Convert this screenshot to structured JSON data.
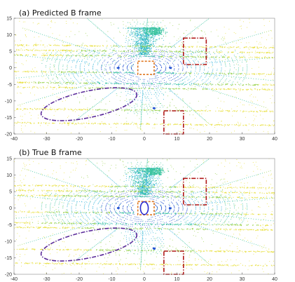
{
  "chart_data": [
    {
      "type": "scatter",
      "title": "(a) Predicted B frame",
      "xlim": [
        -40,
        40
      ],
      "ylim": [
        -20,
        15
      ],
      "x_ticks": [
        -40,
        -30,
        -20,
        -10,
        0,
        10,
        20,
        30,
        40
      ],
      "y_ticks": [
        15,
        10,
        5,
        0,
        -5,
        -10,
        -15,
        -20
      ],
      "colormap": [
        "#1f4fd0",
        "#2ab0d8",
        "#3cc4a0",
        "#9fd456",
        "#e8e040"
      ],
      "annotations": [
        {
          "shape": "rectangle",
          "style": "dash-dot",
          "color": "#b01818",
          "x": [
            12,
            19
          ],
          "y": [
            1,
            9
          ]
        },
        {
          "shape": "rectangle",
          "style": "dash-dot",
          "color": "#b01818",
          "x": [
            6,
            12
          ],
          "y": [
            -20,
            -13
          ]
        },
        {
          "shape": "rectangle",
          "style": "dashed",
          "color": "#e07820",
          "x": [
            -2,
            3
          ],
          "y": [
            -2,
            2
          ]
        },
        {
          "shape": "ellipse",
          "style": "dash-dot",
          "color": "#5a2a9a",
          "center": [
            -17,
            -11
          ],
          "radii": [
            15,
            4
          ],
          "rotation_deg": -12
        }
      ]
    },
    {
      "type": "scatter",
      "title": "(b) True B frame",
      "xlim": [
        -40,
        40
      ],
      "ylim": [
        -20,
        15
      ],
      "x_ticks": [
        -40,
        -30,
        -20,
        -10,
        0,
        10,
        20,
        30,
        40
      ],
      "y_ticks": [
        15,
        10,
        5,
        0,
        -5,
        -10,
        -15,
        -20
      ],
      "colormap": [
        "#1f4fd0",
        "#2ab0d8",
        "#3cc4a0",
        "#9fd456",
        "#e8e040"
      ],
      "annotations": [
        {
          "shape": "rectangle",
          "style": "dash-dot",
          "color": "#b01818",
          "x": [
            12,
            19
          ],
          "y": [
            1,
            9
          ]
        },
        {
          "shape": "rectangle",
          "style": "dash-dot",
          "color": "#b01818",
          "x": [
            6,
            12
          ],
          "y": [
            -20,
            -13
          ]
        },
        {
          "shape": "rectangle",
          "style": "dashed",
          "color": "#e07820",
          "x": [
            -2,
            3
          ],
          "y": [
            -2,
            2
          ]
        },
        {
          "shape": "ellipse",
          "style": "dash-dot",
          "color": "#5a2a9a",
          "center": [
            -17,
            -11
          ],
          "radii": [
            15,
            4
          ],
          "rotation_deg": -12
        },
        {
          "shape": "circle",
          "style": "solid",
          "color": "#2b2bd0",
          "center": [
            0,
            0
          ],
          "radius": 1.2
        }
      ]
    }
  ]
}
